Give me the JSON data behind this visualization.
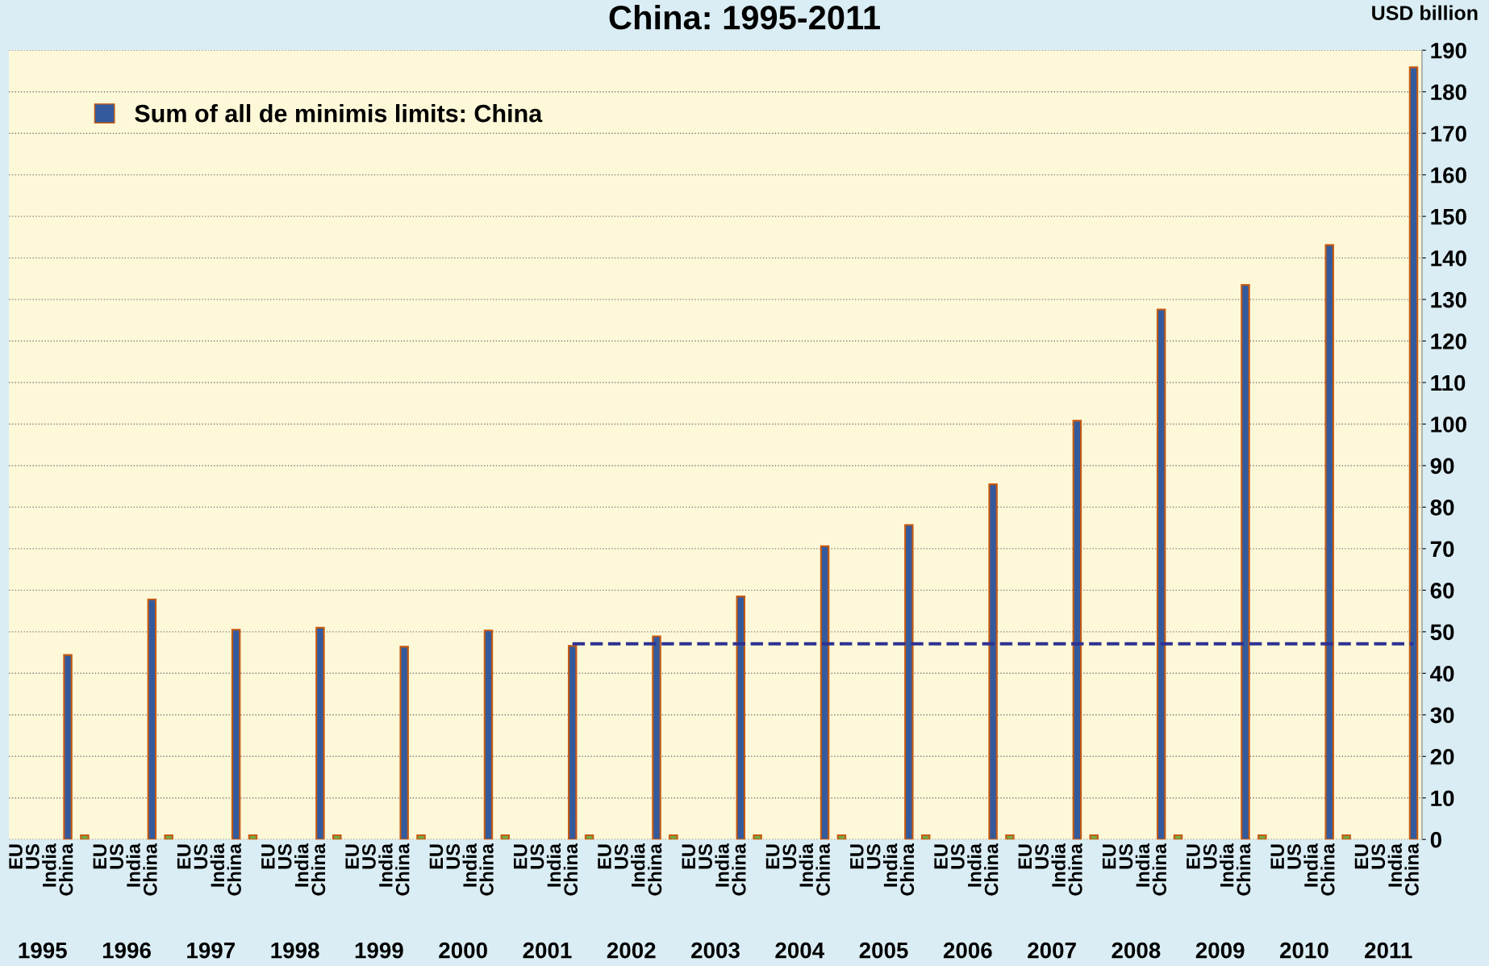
{
  "chart_data": {
    "type": "bar",
    "title": "China: 1995-2011",
    "ylabel": "USD billion",
    "categories": [
      "EU",
      "US",
      "India",
      "China",
      null,
      "EU",
      "US",
      "India",
      "China",
      null,
      "EU",
      "US",
      "India",
      "China",
      null,
      "EU",
      "US",
      "India",
      "China",
      null,
      "EU",
      "US",
      "India",
      "China",
      null,
      "EU",
      "US",
      "India",
      "China",
      null,
      "EU",
      "US",
      "India",
      "China",
      null,
      "EU",
      "US",
      "India",
      "China",
      null,
      "EU",
      "US",
      "India",
      "China",
      null,
      "EU",
      "US",
      "India",
      "China",
      null,
      "EU",
      "US",
      "India",
      "China",
      null,
      "EU",
      "US",
      "India",
      "China",
      null,
      "EU",
      "US",
      "India",
      "China",
      null,
      "EU",
      "US",
      "India",
      "China",
      null,
      "EU",
      "US",
      "India",
      "China",
      null,
      "EU",
      "US",
      "India",
      "China",
      null,
      "EU",
      "US",
      "India",
      "China"
    ],
    "annotations": [
      "1995",
      "1996",
      "1997",
      "1998",
      "1999",
      "2000",
      "2001",
      "2002",
      "2003",
      "2004",
      "2005",
      "2006",
      "2007",
      "2008",
      "2009",
      "2010",
      "2011"
    ],
    "series": [
      {
        "name": "Sum of all de minimis limits: China",
        "color": "#345a9e",
        "values": [
          null,
          null,
          null,
          44.4,
          null,
          null,
          null,
          null,
          57.8,
          null,
          null,
          null,
          null,
          50.5,
          null,
          null,
          null,
          null,
          51.0,
          null,
          null,
          null,
          null,
          46.4,
          null,
          null,
          null,
          null,
          50.3,
          null,
          null,
          null,
          null,
          46.6,
          null,
          null,
          null,
          null,
          48.9,
          null,
          null,
          null,
          null,
          58.5,
          null,
          null,
          null,
          null,
          70.6,
          null,
          null,
          null,
          null,
          75.7,
          null,
          null,
          null,
          null,
          85.5,
          null,
          null,
          null,
          null,
          100.8,
          null,
          null,
          null,
          null,
          127.6,
          null,
          null,
          null,
          null,
          133.5,
          null,
          null,
          null,
          null,
          143.1,
          null,
          null,
          null,
          null,
          185.9
        ]
      },
      {
        "color": "#70ad47",
        "values": [
          null,
          null,
          null,
          null,
          1,
          null,
          null,
          null,
          null,
          1,
          null,
          null,
          null,
          null,
          1,
          null,
          null,
          null,
          null,
          1,
          null,
          null,
          null,
          null,
          1,
          null,
          null,
          null,
          null,
          1,
          null,
          null,
          null,
          null,
          1,
          null,
          null,
          null,
          null,
          1,
          null,
          null,
          null,
          null,
          1,
          null,
          null,
          null,
          null,
          1,
          null,
          null,
          null,
          null,
          1,
          null,
          null,
          null,
          null,
          1,
          null,
          null,
          null,
          null,
          1,
          null,
          null,
          null,
          null,
          1,
          null,
          null,
          null,
          null,
          1,
          null,
          null,
          null,
          null,
          1,
          null,
          null,
          null,
          null
        ]
      },
      {
        "type": "line",
        "line_style": "dashed",
        "color": "#2e3192",
        "values": [
          null,
          null,
          null,
          null,
          null,
          null,
          null,
          null,
          null,
          null,
          null,
          null,
          null,
          null,
          null,
          null,
          null,
          null,
          null,
          null,
          null,
          null,
          null,
          null,
          null,
          null,
          null,
          null,
          null,
          null,
          null,
          null,
          null,
          47.1,
          47.1,
          47.1,
          47.1,
          47.1,
          47.1,
          47.1,
          47.1,
          47.1,
          47.1,
          47.1,
          47.1,
          47.1,
          47.1,
          47.1,
          47.1,
          47.1,
          47.1,
          47.1,
          47.1,
          47.1,
          47.1,
          47.1,
          47.1,
          47.1,
          47.1,
          47.1,
          47.1,
          47.1,
          47.1,
          47.1,
          47.1,
          47.1,
          47.1,
          47.1,
          47.1,
          47.1,
          47.1,
          47.1,
          47.1,
          47.1,
          47.1,
          47.1,
          47.1,
          47.1,
          47.1,
          47.1,
          47.1,
          47.1,
          47.1,
          47.1
        ]
      }
    ],
    "ylim": [
      0,
      190
    ],
    "yticks": [
      0,
      10,
      20,
      30,
      40,
      50,
      60,
      70,
      80,
      90,
      100,
      110,
      120,
      130,
      140,
      150,
      160,
      170,
      180,
      190
    ],
    "grid": "y",
    "legend": "top left"
  }
}
